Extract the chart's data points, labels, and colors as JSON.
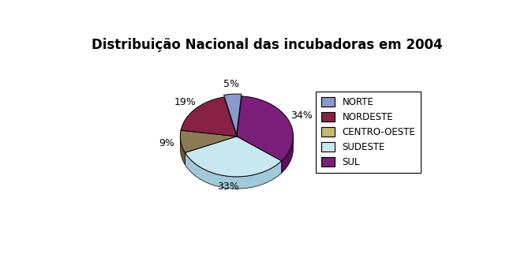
{
  "title": "Distribuição Nacional das incubadoras em 2004",
  "labels": [
    "NORTE",
    "NORDESTE",
    "CENTRO-OESTE",
    "SUDESTE",
    "SUL"
  ],
  "values": [
    5,
    19,
    9,
    33,
    34
  ],
  "colors_top": [
    "#8899CC",
    "#882244",
    "#8B7B55",
    "#C8E8F0",
    "#7B1F7B"
  ],
  "colors_side": [
    "#6677AA",
    "#661133",
    "#6B5B35",
    "#A0C8D8",
    "#590F59"
  ],
  "explode": [
    0.05,
    0.0,
    0.0,
    0.0,
    0.0
  ],
  "startangle": 85,
  "legend_labels": [
    "NORTE",
    "NORDESTE",
    "CENTRO-OESTE",
    "SUDESTE",
    "SUL"
  ],
  "figsize": [
    6.6,
    3.32
  ],
  "dpi": 100
}
